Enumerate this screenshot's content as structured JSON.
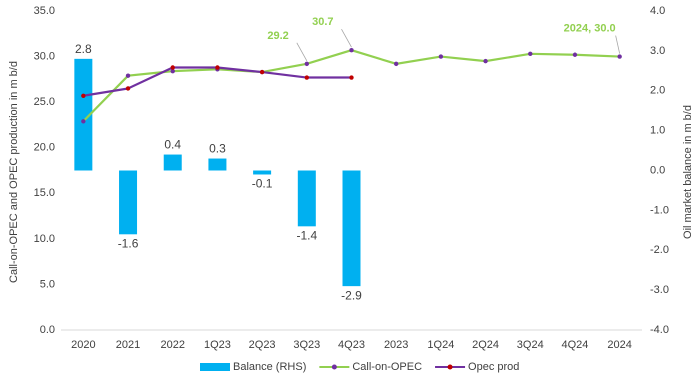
{
  "chart_data": {
    "type": "bar-line",
    "categories": [
      "2020",
      "2021",
      "2022",
      "1Q23",
      "2Q23",
      "3Q23",
      "4Q23",
      "2023",
      "1Q24",
      "2Q24",
      "3Q24",
      "4Q24",
      "2024"
    ],
    "y_label": "Call-on-OPEC and OPEC production in m b/d",
    "y2_label": "Oil market balance in m b/d",
    "ylim": [
      0,
      35
    ],
    "yticks": [
      {
        "value": 0,
        "label": "0.0"
      },
      {
        "value": 5,
        "label": "5.0"
      },
      {
        "value": 10,
        "label": "10.0"
      },
      {
        "value": 15,
        "label": "15.0"
      },
      {
        "value": 20,
        "label": "20.0"
      },
      {
        "value": 25,
        "label": "25.0"
      },
      {
        "value": 30,
        "label": "30.0"
      },
      {
        "value": 35,
        "label": "35.0"
      }
    ],
    "y2lim": [
      -4,
      4
    ],
    "y2ticks": [
      {
        "value": -4,
        "label": "-4.0"
      },
      {
        "value": -3,
        "label": "-3.0"
      },
      {
        "value": -2,
        "label": "-2.0"
      },
      {
        "value": -1,
        "label": "-1.0"
      },
      {
        "value": 0,
        "label": "0.0"
      },
      {
        "value": 1,
        "label": "1.0"
      },
      {
        "value": 2,
        "label": "2.0"
      },
      {
        "value": 3,
        "label": "3.0"
      },
      {
        "value": 4,
        "label": "4.0"
      }
    ],
    "series": [
      {
        "name": "Balance (RHS)",
        "type": "bar",
        "axis": "y2",
        "color": "#00b0f0",
        "values": [
          2.8,
          -1.6,
          0.4,
          0.3,
          -0.1,
          -1.4,
          -2.9,
          null,
          null,
          null,
          null,
          null,
          null
        ]
      },
      {
        "name": "Call-on-OPEC",
        "type": "line",
        "color": "#92d050",
        "marker_color": "#7030a0",
        "values": [
          22.9,
          27.9,
          28.4,
          28.6,
          28.3,
          29.2,
          30.7,
          29.2,
          30.0,
          29.5,
          30.3,
          30.2,
          30.0
        ],
        "value_labels": [
          null,
          null,
          null,
          null,
          null,
          "29.2",
          "30.7",
          null,
          null,
          null,
          null,
          null,
          "2024, 30.0"
        ]
      },
      {
        "name": "Opec prod",
        "type": "line",
        "color": "#7030a0",
        "marker_color": "#c00000",
        "values": [
          25.7,
          26.5,
          28.8,
          28.8,
          28.3,
          27.7,
          27.7,
          null,
          null,
          null,
          null,
          null,
          null
        ]
      }
    ],
    "legend": "bottom"
  }
}
